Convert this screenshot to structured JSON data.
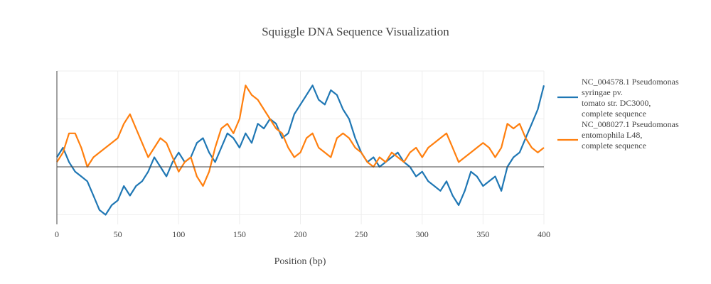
{
  "chart_data": {
    "type": "line",
    "title": "Squiggle DNA Sequence Visualization",
    "xlabel": "Position (bp)",
    "ylabel": "",
    "xlim": [
      0,
      400
    ],
    "ylim": [
      -12,
      20
    ],
    "xticks": [
      0,
      50,
      100,
      150,
      200,
      250,
      300,
      350,
      400
    ],
    "y_gridlines": [
      -10,
      0,
      10,
      20
    ],
    "grid": true,
    "legend_position": "right",
    "series": [
      {
        "name": "NC_004578.1 Pseudomonas syringae pv. tomato str. DC3000, complete sequence",
        "legend_lines": [
          "NC_004578.1 Pseudomonas",
          "syringae pv.",
          "tomato str. DC3000,",
          "complete sequence"
        ],
        "color": "#1f77b4",
        "x": [
          0,
          5,
          10,
          15,
          20,
          25,
          30,
          35,
          40,
          45,
          50,
          55,
          60,
          65,
          70,
          75,
          80,
          85,
          90,
          95,
          100,
          105,
          110,
          115,
          120,
          125,
          130,
          135,
          140,
          145,
          150,
          155,
          160,
          165,
          170,
          175,
          180,
          185,
          190,
          195,
          200,
          205,
          210,
          215,
          220,
          225,
          230,
          235,
          240,
          245,
          250,
          255,
          260,
          265,
          270,
          275,
          280,
          285,
          290,
          295,
          300,
          305,
          310,
          315,
          320,
          325,
          330,
          335,
          340,
          345,
          350,
          355,
          360,
          365,
          370,
          375,
          380,
          385,
          390,
          395,
          400
        ],
        "y": [
          2,
          4,
          1,
          -1,
          -2,
          -3,
          -6,
          -9,
          -10,
          -8,
          -7,
          -4,
          -6,
          -4,
          -3,
          -1,
          2,
          0,
          -2,
          1,
          3,
          1,
          2,
          5,
          6,
          3,
          1,
          4,
          7,
          6,
          4,
          7,
          5,
          9,
          8,
          10,
          9,
          6,
          7,
          11,
          13,
          15,
          17,
          14,
          13,
          16,
          15,
          12,
          10,
          6,
          3,
          1,
          2,
          0,
          1,
          2,
          3,
          1,
          0,
          -2,
          -1,
          -3,
          -4,
          -5,
          -3,
          -6,
          -8,
          -5,
          -1,
          -2,
          -4,
          -3,
          -2,
          -5,
          0,
          2,
          3,
          6,
          9,
          12,
          17
        ]
      },
      {
        "name": "NC_008027.1 Pseudomonas entomophila L48, complete sequence",
        "legend_lines": [
          "NC_008027.1 Pseudomonas",
          "entomophila L48,",
          "complete sequence"
        ],
        "color": "#ff7f0e",
        "x": [
          0,
          5,
          10,
          15,
          20,
          25,
          30,
          35,
          40,
          45,
          50,
          55,
          60,
          65,
          70,
          75,
          80,
          85,
          90,
          95,
          100,
          105,
          110,
          115,
          120,
          125,
          130,
          135,
          140,
          145,
          150,
          155,
          160,
          165,
          170,
          175,
          180,
          185,
          190,
          195,
          200,
          205,
          210,
          215,
          220,
          225,
          230,
          235,
          240,
          245,
          250,
          255,
          260,
          265,
          270,
          275,
          280,
          285,
          290,
          295,
          300,
          305,
          310,
          315,
          320,
          325,
          330,
          335,
          340,
          345,
          350,
          355,
          360,
          365,
          370,
          375,
          380,
          385,
          390,
          395,
          400
        ],
        "y": [
          1,
          3,
          7,
          7,
          4,
          0,
          2,
          3,
          4,
          5,
          6,
          9,
          11,
          8,
          5,
          2,
          4,
          6,
          5,
          2,
          -1,
          1,
          2,
          -2,
          -4,
          -1,
          4,
          8,
          9,
          7,
          10,
          17,
          15,
          14,
          12,
          10,
          8,
          7,
          4,
          2,
          3,
          6,
          7,
          4,
          3,
          2,
          6,
          7,
          6,
          4,
          3,
          1,
          0,
          2,
          1,
          3,
          2,
          1,
          3,
          4,
          2,
          4,
          5,
          6,
          7,
          4,
          1,
          2,
          3,
          4,
          5,
          4,
          2,
          4,
          9,
          8,
          9,
          6,
          4,
          3,
          4
        ]
      }
    ]
  }
}
